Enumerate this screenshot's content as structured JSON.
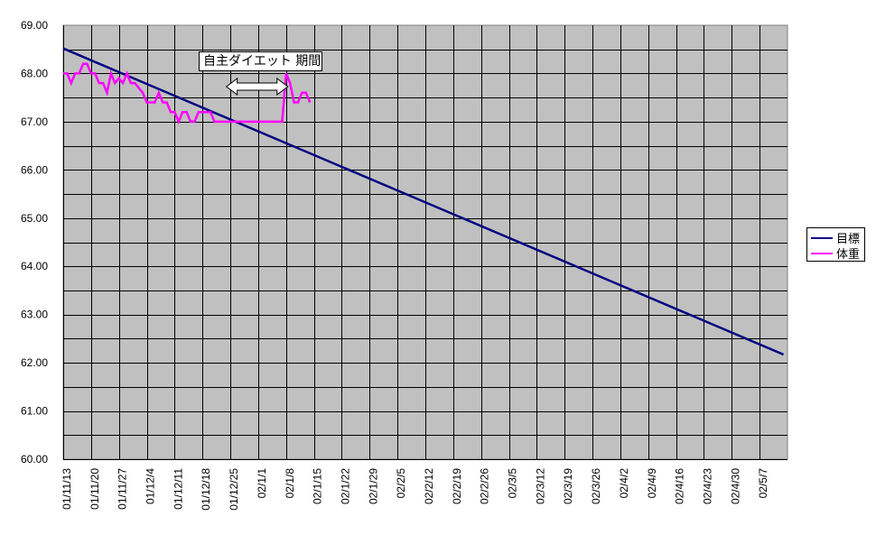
{
  "chart_data": {
    "type": "line",
    "title": "",
    "xlabel": "",
    "ylabel": "",
    "ylim": [
      60.0,
      69.0
    ],
    "ytick_step": 1.0,
    "y_minor_grid_step": 0.5,
    "grid": true,
    "plot_background": "#C0C0C0",
    "legend_position": "right",
    "yticks": [
      "69.00",
      "68.00",
      "67.00",
      "66.00",
      "65.00",
      "64.00",
      "63.00",
      "62.00",
      "61.00",
      "60.00"
    ],
    "x_categories": [
      "01/11/13",
      "01/11/20",
      "01/11/27",
      "01/12/4",
      "01/12/11",
      "01/12/18",
      "01/12/25",
      "02/1/1",
      "02/1/8",
      "02/1/15",
      "02/1/22",
      "02/1/29",
      "02/2/5",
      "02/2/12",
      "02/2/19",
      "02/2/26",
      "02/3/5",
      "02/3/12",
      "02/3/19",
      "02/3/26",
      "02/4/2",
      "02/4/9",
      "02/4/16",
      "02/4/23",
      "02/4/30",
      "02/5/7"
    ],
    "x_days_total": 182,
    "series": [
      {
        "name": "目標",
        "color": "#000080",
        "kind": "linear",
        "start_day": 0,
        "end_day": 181,
        "start_value": 68.52,
        "end_value": 62.17
      },
      {
        "name": "体重",
        "color": "#FF00FF",
        "kind": "daily",
        "start_day": 0,
        "values": [
          68.0,
          68.0,
          67.8,
          68.0,
          68.0,
          68.2,
          68.2,
          68.0,
          68.0,
          67.8,
          67.8,
          67.6,
          68.0,
          67.8,
          67.9,
          67.8,
          68.0,
          67.8,
          67.8,
          67.7,
          67.6,
          67.4,
          67.4,
          67.4,
          67.6,
          67.4,
          67.4,
          67.2,
          67.2,
          67.0,
          67.2,
          67.2,
          67.0,
          67.0,
          67.2,
          67.2,
          67.2,
          67.2,
          67.0,
          67.0,
          67.0,
          67.0,
          67.0,
          67.0,
          67.0,
          67.0,
          67.0,
          67.0,
          67.0,
          67.0,
          67.0,
          67.0,
          67.0,
          67.0,
          67.0,
          67.0,
          68.0,
          67.8,
          67.4,
          67.4,
          67.6,
          67.6,
          67.4
        ]
      }
    ],
    "annotations": [
      {
        "text": "自主ダイエット 期間",
        "type": "textbox"
      },
      {
        "type": "double-arrow",
        "from_day": 41,
        "to_day": 56,
        "value": 67.75
      }
    ]
  },
  "annotation": {
    "label": "自主ダイエット 期間"
  },
  "legend": {
    "items": [
      {
        "label": "目標",
        "color": "#000080"
      },
      {
        "label": "体重",
        "color": "#FF00FF"
      }
    ]
  }
}
